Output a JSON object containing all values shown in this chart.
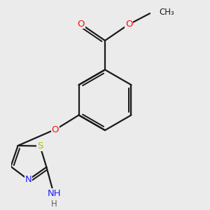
{
  "background_color": "#ebebeb",
  "bond_color": "#1a1a1a",
  "atom_colors": {
    "C": "#1a1a1a",
    "N": "#2020ff",
    "O": "#ee1111",
    "S": "#b8b800",
    "H": "#606060"
  },
  "figsize": [
    3.0,
    3.0
  ],
  "dpi": 100,
  "bond_lw": 1.6,
  "font_size": 9.5
}
